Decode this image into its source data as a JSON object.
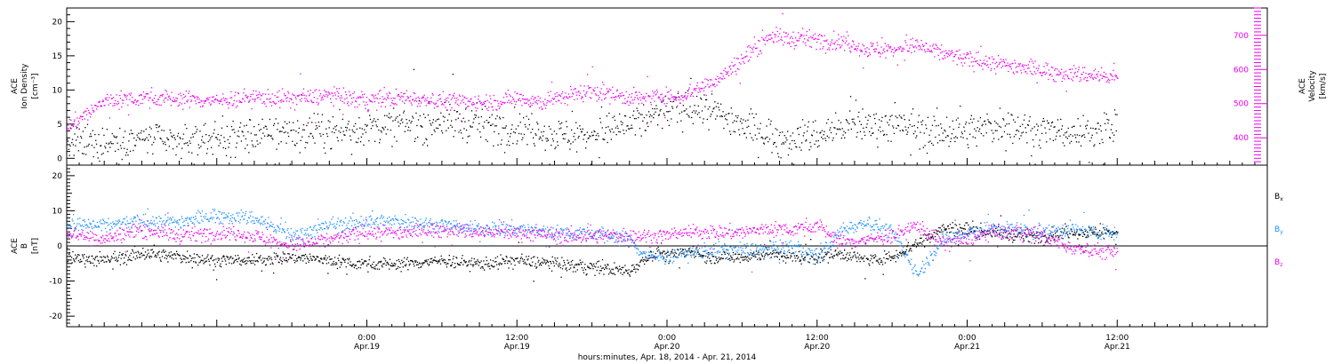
{
  "chart_data": [
    {
      "type": "scatter",
      "panel": "top",
      "left_axis_label": [
        "ACE",
        "Ion Density",
        "[cm⁻³]"
      ],
      "right_axis_label": [
        "ACE",
        "Velocity",
        "[km/s]"
      ],
      "left_ylim": [
        -1,
        22
      ],
      "right_ylim": [
        320,
        780
      ],
      "left_ticks": [
        "0",
        "5",
        "10",
        "15",
        "20"
      ],
      "right_ticks": [
        "400",
        "500",
        "600",
        "700"
      ],
      "left_tick_values": [
        0,
        5,
        10,
        15,
        20
      ],
      "right_tick_values": [
        400,
        500,
        600,
        700
      ],
      "series": [
        {
          "key": "density",
          "axis": "left",
          "color": "#000000",
          "x_hours": [
            0,
            3,
            6,
            9,
            12,
            15,
            18,
            21,
            24,
            27,
            30,
            33,
            36,
            39,
            42,
            45,
            48,
            51,
            54,
            57,
            60,
            63,
            66,
            69,
            72,
            75,
            78,
            81,
            84
          ],
          "values": [
            2,
            2.5,
            3,
            2.5,
            3,
            3.5,
            4,
            4,
            4.5,
            5,
            5.5,
            5,
            4.5,
            3.5,
            3.5,
            5,
            7,
            7.5,
            5,
            3,
            3.5,
            5,
            5,
            4,
            4,
            5,
            4,
            3.5,
            5
          ],
          "spread": 1.8
        },
        {
          "key": "velocity",
          "axis": "right",
          "color": "#ee00ee",
          "x_hours": [
            0,
            0.5,
            1,
            2,
            3,
            6,
            9,
            12,
            15,
            18,
            21,
            24,
            27,
            30,
            33,
            35,
            36,
            38,
            40,
            42,
            44,
            46,
            47,
            47.5,
            48,
            49,
            50,
            52,
            54,
            56,
            58,
            60,
            62,
            64,
            66,
            68,
            70,
            72,
            74,
            76,
            78,
            80,
            82,
            84
          ],
          "values": [
            440,
            440,
            460,
            480,
            510,
            520,
            515,
            510,
            520,
            515,
            525,
            510,
            520,
            510,
            505,
            510,
            520,
            505,
            525,
            540,
            525,
            515,
            520,
            530,
            520,
            520,
            540,
            570,
            630,
            700,
            690,
            690,
            680,
            660,
            660,
            670,
            650,
            630,
            620,
            610,
            600,
            590,
            585,
            575
          ],
          "spread": 18
        }
      ]
    },
    {
      "type": "scatter",
      "panel": "bottom",
      "left_axis_label": [
        "ACE",
        "B",
        "[nT]"
      ],
      "left_ylim": [
        -23,
        23
      ],
      "left_ticks": [
        "-20",
        "-10",
        "0",
        "10",
        "20"
      ],
      "left_tick_values": [
        -20,
        -10,
        0,
        10,
        20
      ],
      "zero_line": true,
      "legend_placement": "right",
      "series": [
        {
          "key": "bx",
          "name": "B",
          "subscript": "x",
          "color": "#000000",
          "x_hours": [
            0,
            3,
            6,
            9,
            12,
            15,
            18,
            21,
            24,
            27,
            30,
            33,
            36,
            39,
            42,
            45,
            46,
            47,
            47.5,
            48,
            49,
            50,
            51,
            52,
            54,
            56,
            58,
            60,
            62,
            64,
            66,
            68,
            70,
            72,
            74,
            76,
            78,
            80,
            82,
            84
          ],
          "values": [
            -3,
            -4,
            -2,
            -3,
            -4,
            -4,
            -3,
            -4,
            -5,
            -5,
            -4,
            -5,
            -4,
            -5,
            -6,
            -7,
            -4,
            -2,
            -1,
            -3,
            -2,
            -1,
            -3,
            -3,
            -3,
            -2,
            -3,
            -3,
            -2,
            -4,
            -3,
            1,
            5,
            5,
            4,
            3,
            3,
            4,
            4,
            4
          ],
          "spread": 1.3
        },
        {
          "key": "by",
          "name": "B",
          "subscript": "y",
          "color": "#1e90ff",
          "x_hours": [
            0,
            3,
            6,
            9,
            12,
            15,
            18,
            21,
            24,
            27,
            30,
            33,
            36,
            39,
            42,
            45,
            46,
            47,
            48,
            49,
            50,
            51,
            52,
            54,
            56,
            58,
            60,
            62,
            64,
            66,
            68,
            70,
            72,
            74,
            76,
            78,
            80,
            82,
            84
          ],
          "values": [
            6,
            6,
            7,
            7,
            9,
            8,
            3,
            6,
            7,
            7,
            6,
            5,
            5,
            4,
            4,
            2,
            -2,
            -3,
            -3,
            -2,
            -2,
            -1,
            -1,
            -1,
            -1,
            0,
            -3,
            5,
            7,
            4,
            -8,
            2,
            4,
            5,
            5,
            4,
            5,
            4,
            4
          ],
          "spread": 1.5
        },
        {
          "key": "bz",
          "name": "B",
          "subscript": "z",
          "color": "#ee00ee",
          "x_hours": [
            0,
            3,
            6,
            9,
            12,
            15,
            18,
            21,
            24,
            27,
            30,
            33,
            36,
            39,
            42,
            45,
            46,
            47,
            48,
            49,
            50,
            51,
            52,
            54,
            56,
            58,
            60,
            62,
            64,
            66,
            68,
            70,
            72,
            74,
            76,
            78,
            80,
            82,
            84
          ],
          "values": [
            4,
            2,
            5,
            3,
            4,
            3,
            0,
            2,
            4,
            4,
            5,
            4,
            4,
            3,
            3,
            3,
            3,
            3,
            3,
            4,
            4,
            4,
            4,
            4,
            5,
            5,
            6,
            1,
            2,
            3,
            6,
            1,
            2,
            4,
            4,
            3,
            0,
            -1,
            -2
          ],
          "spread": 1.5
        }
      ]
    }
  ],
  "x_axis": {
    "range_hours": [
      0,
      96
    ],
    "start": "Apr. 18, 2014 00:00",
    "tick_labels": [
      {
        "hours": 24,
        "time": "0:00",
        "date": "Apr.19"
      },
      {
        "hours": 36,
        "time": "12:00",
        "date": "Apr.19"
      },
      {
        "hours": 48,
        "time": "0:00",
        "date": "Apr.20"
      },
      {
        "hours": 60,
        "time": "12:00",
        "date": "Apr.20"
      },
      {
        "hours": 72,
        "time": "0:00",
        "date": "Apr.21"
      },
      {
        "hours": 84,
        "time": "12:00",
        "date": "Apr.21"
      }
    ],
    "title": "hours:minutes, Apr. 18, 2014 - Apr. 21, 2014"
  }
}
